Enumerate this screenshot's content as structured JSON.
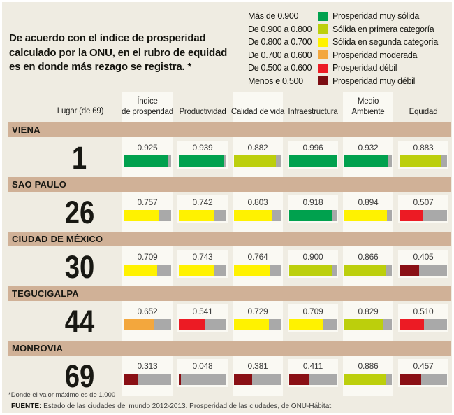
{
  "intro": {
    "text": "De acuerdo con el índice de prosperidad\ncalculado por la ONU, en el rubro de equidad\nes en donde más rezago se registra. *"
  },
  "legend": {
    "items": [
      {
        "range": "Más de 0.900",
        "color": "#00A14E",
        "label": "Prosperidad muy sólida"
      },
      {
        "range": "De 0.900 a 0.800",
        "color": "#BCCF0C",
        "label": "Sólida en primera categoría"
      },
      {
        "range": "De 0.800 a 0.700",
        "color": "#FFF200",
        "label": "Sólida en segunda categoría"
      },
      {
        "range": "De 0.700 a 0.600",
        "color": "#F3A73D",
        "label": "Prosperidad moderada"
      },
      {
        "range": "De 0.500 a 0.600",
        "color": "#EC1B24",
        "label": "Prosperidad débil"
      },
      {
        "range": "Menos e 0.500",
        "color": "#7B0D12",
        "label": "Prosperidad muy débil"
      }
    ]
  },
  "colors": {
    "green": "#00A14E",
    "lime": "#BCCF0C",
    "yellow": "#FFF200",
    "orange": "#F3A73D",
    "red": "#EC1B24",
    "darkred": "#8A1015",
    "gray": "#A9A9A9",
    "band_tan": "#D0B197",
    "background": "#EFECE2",
    "cell_white": "#FAF9F3"
  },
  "table": {
    "rank_header": "Lugar (de 69)",
    "columns": [
      {
        "label": "Índice\nde prosperidad",
        "strip": true
      },
      {
        "label": "Productividad",
        "strip": false
      },
      {
        "label": "Calidad de vida",
        "strip": true
      },
      {
        "label": "Infraestructura",
        "strip": false
      },
      {
        "label": "Medio\nAmbiente",
        "strip": true
      },
      {
        "label": "Equidad",
        "strip": false
      }
    ],
    "rows": [
      {
        "city": "VIENA",
        "rank": "1",
        "cells": [
          {
            "value": "0.925",
            "color_key": "green"
          },
          {
            "value": "0.939",
            "color_key": "green"
          },
          {
            "value": "0.882",
            "color_key": "lime"
          },
          {
            "value": "0.996",
            "color_key": "green"
          },
          {
            "value": "0.932",
            "color_key": "green"
          },
          {
            "value": "0.883",
            "color_key": "lime"
          }
        ]
      },
      {
        "city": "SAO PAULO",
        "rank": "26",
        "cells": [
          {
            "value": "0.757",
            "color_key": "yellow"
          },
          {
            "value": "0.742",
            "color_key": "yellow"
          },
          {
            "value": "0.803",
            "color_key": "yellow"
          },
          {
            "value": "0.918",
            "color_key": "green"
          },
          {
            "value": "0.894",
            "color_key": "yellow"
          },
          {
            "value": "0.507",
            "color_key": "red"
          }
        ]
      },
      {
        "city": "CIUDAD DE MÉXICO",
        "rank": "30",
        "cells": [
          {
            "value": "0.709",
            "color_key": "yellow"
          },
          {
            "value": "0.743",
            "color_key": "yellow"
          },
          {
            "value": "0.764",
            "color_key": "yellow"
          },
          {
            "value": "0.900",
            "color_key": "lime"
          },
          {
            "value": "0.866",
            "color_key": "lime"
          },
          {
            "value": "0.405",
            "color_key": "darkred"
          }
        ]
      },
      {
        "city": "TEGUCIGALPA",
        "rank": "44",
        "cells": [
          {
            "value": "0.652",
            "color_key": "orange"
          },
          {
            "value": "0.541",
            "color_key": "red"
          },
          {
            "value": "0.729",
            "color_key": "yellow"
          },
          {
            "value": "0.709",
            "color_key": "yellow"
          },
          {
            "value": "0.829",
            "color_key": "lime"
          },
          {
            "value": "0.510",
            "color_key": "red"
          }
        ]
      },
      {
        "city": "MONROVIA",
        "rank": "69",
        "cells": [
          {
            "value": "0.313",
            "color_key": "darkred"
          },
          {
            "value": "0.048",
            "color_key": "darkred"
          },
          {
            "value": "0.381",
            "color_key": "darkred"
          },
          {
            "value": "0.411",
            "color_key": "darkred"
          },
          {
            "value": "0.886",
            "color_key": "lime"
          },
          {
            "value": "0.457",
            "color_key": "darkred"
          }
        ]
      }
    ]
  },
  "footer": {
    "footnote": "*Donde el valor máximo es de 1.000",
    "source_label": "FUENTE:",
    "source_text": " Estado de las ciudades del mundo 2012-2013. Prosperidad de las ciudades, de ONU-Hábitat."
  },
  "chart_data": {
    "type": "table",
    "title": "Índice de prosperidad calculado por la ONU",
    "rank_label": "Lugar (de 69)",
    "columns": [
      "Índice de prosperidad",
      "Productividad",
      "Calidad de vida",
      "Infraestructura",
      "Medio Ambiente",
      "Equidad"
    ],
    "rows": [
      {
        "city": "VIENA",
        "rank": 1,
        "values": [
          0.925,
          0.939,
          0.882,
          0.996,
          0.932,
          0.883
        ]
      },
      {
        "city": "SAO PAULO",
        "rank": 26,
        "values": [
          0.757,
          0.742,
          0.803,
          0.918,
          0.894,
          0.507
        ]
      },
      {
        "city": "CIUDAD DE MÉXICO",
        "rank": 30,
        "values": [
          0.709,
          0.743,
          0.764,
          0.9,
          0.866,
          0.405
        ]
      },
      {
        "city": "TEGUCIGALPA",
        "rank": 44,
        "values": [
          0.652,
          0.541,
          0.729,
          0.709,
          0.829,
          0.51
        ]
      },
      {
        "city": "MONROVIA",
        "rank": 69,
        "values": [
          0.313,
          0.048,
          0.381,
          0.411,
          0.886,
          0.457
        ]
      }
    ],
    "value_max": 1.0,
    "bar_style": "filled fraction of bar equals value; remainder gray",
    "legend": [
      {
        "range": "Más de 0.900",
        "label": "Prosperidad muy sólida"
      },
      {
        "range": "De 0.900 a 0.800",
        "label": "Sólida en primera categoría"
      },
      {
        "range": "De 0.800 a 0.700",
        "label": "Sólida en segunda categoría"
      },
      {
        "range": "De 0.700 a 0.600",
        "label": "Prosperidad moderada"
      },
      {
        "range": "De 0.500 a 0.600",
        "label": "Prosperidad débil"
      },
      {
        "range": "Menos e 0.500",
        "label": "Prosperidad muy débil"
      }
    ],
    "legend_position": "top-right"
  }
}
